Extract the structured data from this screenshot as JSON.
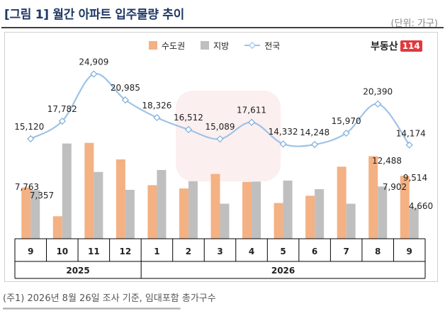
{
  "header": {
    "title": "[그림 1] 월간 아파트 입주물량 추이",
    "unit": "(단위: 가구)"
  },
  "brand": {
    "name": "부동산",
    "mark": "114"
  },
  "legend": [
    {
      "label": "수도권",
      "color": "#f4b183",
      "kind": "bar"
    },
    {
      "label": "지방",
      "color": "#bfbfbf",
      "kind": "bar"
    },
    {
      "label": "전국",
      "color": "#9dc3e6",
      "kind": "line"
    }
  ],
  "footnote": "(주1) 2026년 8월 26일 조사 기준, 임대포함 총가구수",
  "chart_data": {
    "type": "bar",
    "categories": [
      "9",
      "10",
      "11",
      "12",
      "1",
      "2",
      "3",
      "4",
      "5",
      "6",
      "7",
      "8",
      "9"
    ],
    "groups": [
      {
        "label": "2025",
        "span": 4
      },
      {
        "label": "2026",
        "span": 9
      }
    ],
    "series": [
      {
        "name": "수도권",
        "type": "bar",
        "color": "#f4b183",
        "values": [
          7763,
          3400,
          14500,
          12000,
          8100,
          7600,
          9800,
          8600,
          5400,
          6500,
          10900,
          12488,
          9514
        ]
      },
      {
        "name": "지방",
        "type": "bar",
        "color": "#bfbfbf",
        "values": [
          7357,
          14400,
          10100,
          7400,
          10400,
          8700,
          5300,
          8650,
          8800,
          7500,
          5300,
          7902,
          4660
        ]
      },
      {
        "name": "전국",
        "type": "line",
        "color": "#9dc3e6",
        "values": [
          15120,
          17782,
          24909,
          20985,
          18326,
          16512,
          15089,
          17611,
          14332,
          14248,
          15970,
          20390,
          14174
        ]
      }
    ],
    "data_labels": {
      "수도권": [
        {
          "index": 0,
          "text": "7,763"
        },
        {
          "index": 11,
          "text": "12,488"
        },
        {
          "index": 12,
          "text": "9,514"
        }
      ],
      "지방": [
        {
          "index": 0,
          "text": "7,357"
        },
        {
          "index": 11,
          "text": "7,902"
        },
        {
          "index": 12,
          "text": "4,660"
        }
      ],
      "전국": [
        "15,120",
        "17,782",
        "24,909",
        "20,985",
        "18,326",
        "16,512",
        "15,089",
        "17,611",
        "14,332",
        "14,248",
        "15,970",
        "20,390",
        "14,174"
      ]
    },
    "xlabel": "",
    "ylabel": "",
    "ylim": [
      0,
      27000
    ],
    "grid": false,
    "legend_position": "top"
  }
}
